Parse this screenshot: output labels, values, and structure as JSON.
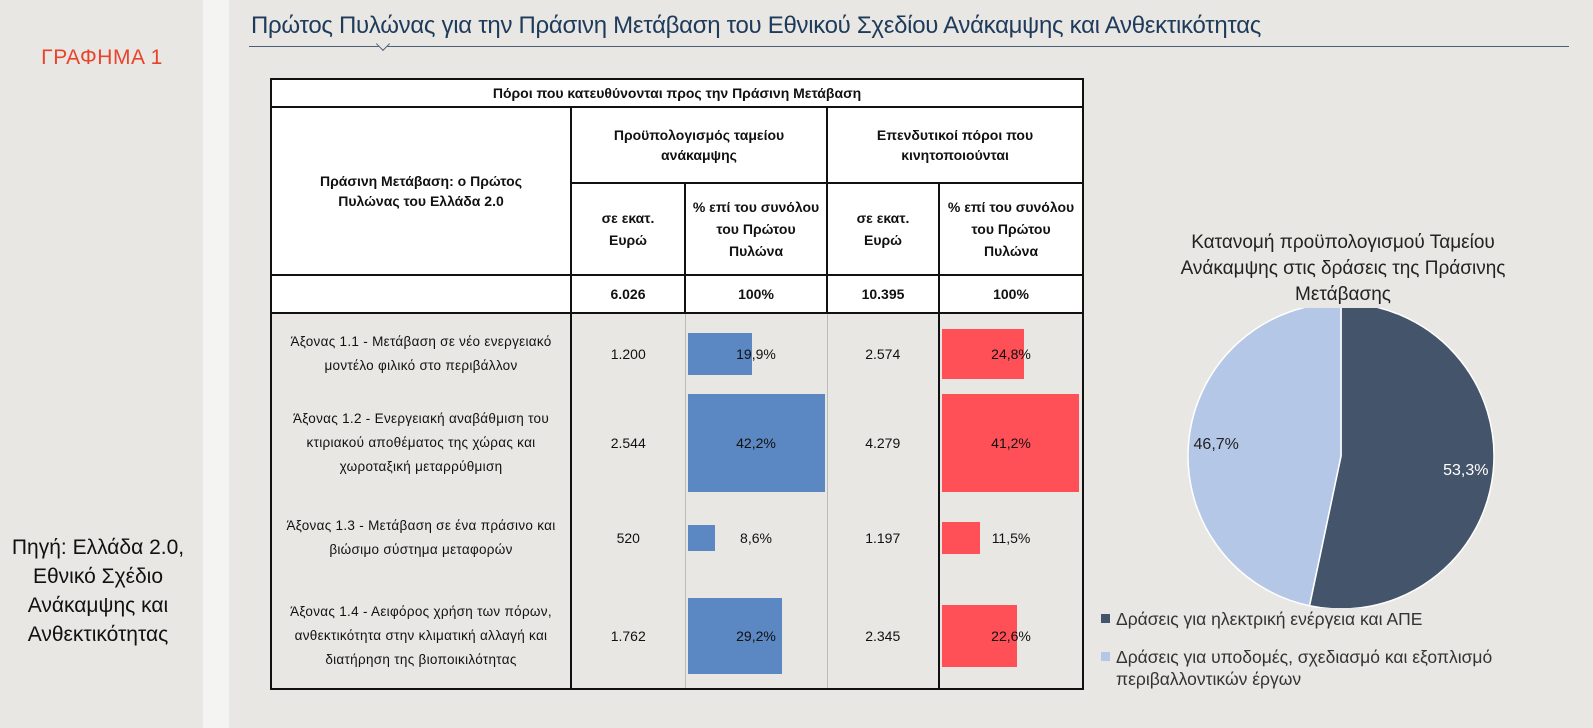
{
  "figure_label": "ΓΡΑΦΗΜΑ 1",
  "source": "Πηγή: Ελλάδα 2.0, Εθνικό Σχέδιο Ανάκαμψης και Ανθεκτικότητας",
  "title": "Πρώτος Πυλώνας για την Πράσινη Μετάβαση του Εθνικού Σχεδίου Ανάκαμψης και Ανθεκτικότητας",
  "table": {
    "header_top": "Πόροι που κατευθύνονται προς την Πράσινη Μετάβαση",
    "row_header": "Πράσινη Μετάβαση: ο Πρώτος Πυλώνας του Ελλάδα 2.0",
    "group1": "Προϋπολογισμός ταμείου ανάκαμψης",
    "group2": "Επενδυτικοί πόροι που κινητοποιούνται",
    "sub_amount": "σε εκατ. Ευρώ",
    "sub_pct": "% επί του συνόλου του Πρώτου Πυλώνα",
    "total_budget": "6.026",
    "total_budget_pct": "100%",
    "total_invest": "10.395",
    "total_invest_pct": "100%",
    "rows": [
      {
        "label": "Άξονας 1.1 - Μετάβαση σε νέο ενεργειακό μοντέλο φιλικό στο περιβάλλον",
        "budget": "1.200",
        "budget_pct": "19,9%",
        "invest": "2.574",
        "invest_pct": "24,8%"
      },
      {
        "label": "Άξονας 1.2 - Ενεργειακή αναβάθμιση του κτιριακού αποθέματος της χώρας και χωροταξική μεταρρύθμιση",
        "budget": "2.544",
        "budget_pct": "42,2%",
        "invest": "4.279",
        "invest_pct": "41,2%"
      },
      {
        "label": "Άξονας 1.3 - Μετάβαση σε ένα πράσινο και βιώσιμο σύστημα μεταφορών",
        "budget": "520",
        "budget_pct": "8,6%",
        "invest": "1.197",
        "invest_pct": "11,5%"
      },
      {
        "label": "Άξονας 1.4 - Αειφόρος χρήση των πόρων, ανθεκτικότητα στην κλιματική αλλαγή και διατήρηση της βιοποικιλότητας",
        "budget": "1.762",
        "budget_pct": "29,2%",
        "invest": "2.345",
        "invest_pct": "22,6%"
      }
    ]
  },
  "colors": {
    "blue_bar": "#5b87c2",
    "red_bar": "#ff4f57",
    "pie_dark": "#44546a",
    "pie_light": "#b4c7e7"
  },
  "chart_data": [
    {
      "type": "bar",
      "title": "Προϋπολογισμός ταμείου ανάκαμψης - % επί του συνόλου του Πρώτου Πυλώνα",
      "categories": [
        "Άξονας 1.1",
        "Άξονας 1.2",
        "Άξονας 1.3",
        "Άξονας 1.4"
      ],
      "values": [
        19.9,
        42.2,
        8.6,
        29.2
      ],
      "orientation": "horizontal",
      "xlim": [
        0,
        42.2
      ]
    },
    {
      "type": "bar",
      "title": "Επενδυτικοί πόροι που κινητοποιούνται - % επί του συνόλου του Πρώτου Πυλώνα",
      "categories": [
        "Άξονας 1.1",
        "Άξονας 1.2",
        "Άξονας 1.3",
        "Άξονας 1.4"
      ],
      "values": [
        24.8,
        41.2,
        11.5,
        22.6
      ],
      "orientation": "horizontal",
      "xlim": [
        0,
        41.2
      ]
    },
    {
      "type": "pie",
      "title": "Κατανομή προϋπολογισμού Ταμείου Ανάκαμψης στις δράσεις της Πράσινης Μετάβασης",
      "labels": [
        "Δράσεις για ηλεκτρική ενέργεια και ΑΠΕ",
        "Δράσεις για υποδομές, σχεδιασμό και εξοπλισμό περιβαλλοντικών έργων"
      ],
      "values": [
        53.3,
        46.7
      ],
      "value_labels": [
        "53,3%",
        "46,7%"
      ],
      "legend": "bottom"
    }
  ]
}
